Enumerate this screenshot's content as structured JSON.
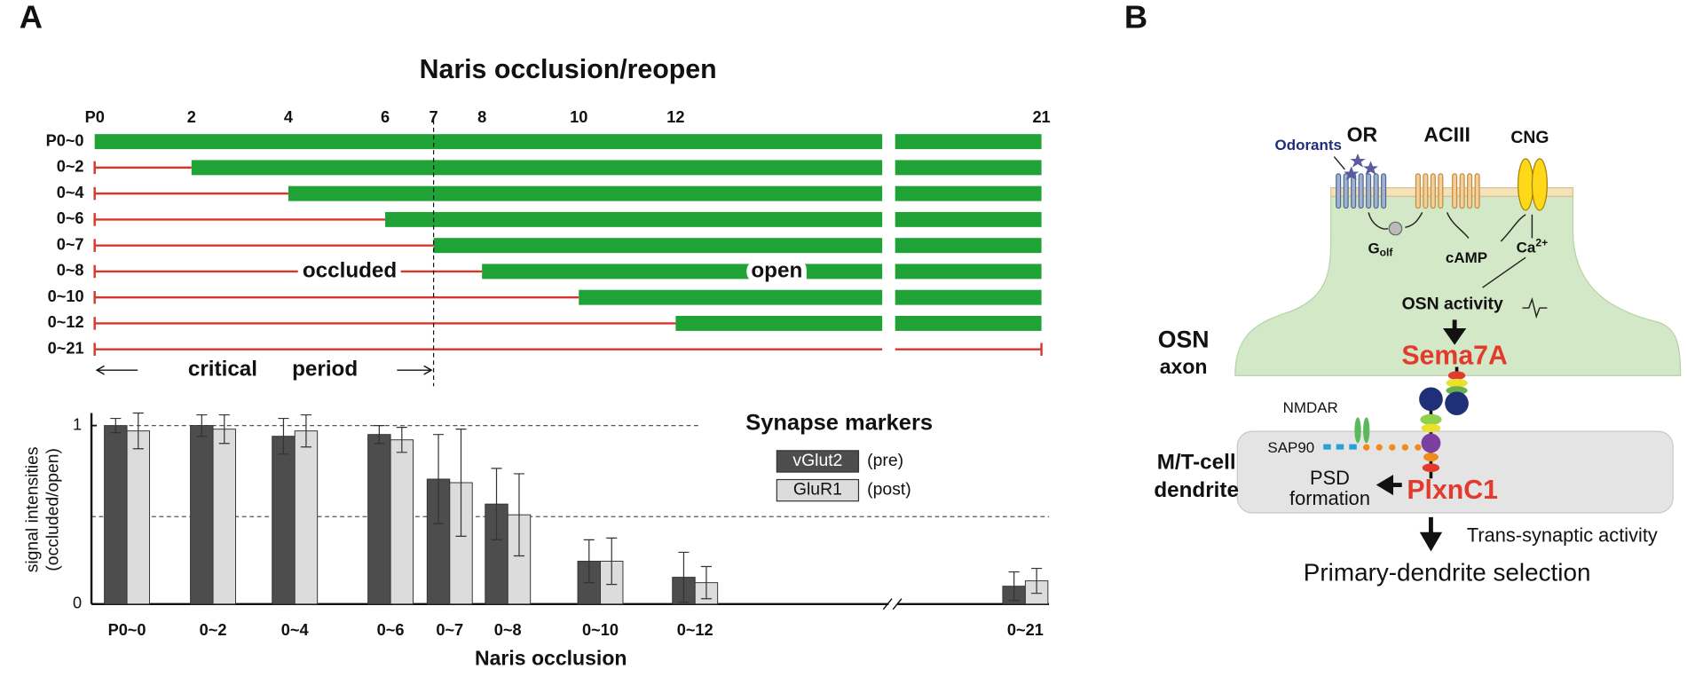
{
  "panel_a": {
    "label": "A"
  },
  "timeline": {
    "title": "Naris occlusion/reopen",
    "ticks": [
      {
        "value": 0,
        "label": "P0"
      },
      2,
      4,
      6,
      7,
      8,
      10,
      12,
      21
    ],
    "xlim": [
      0,
      21
    ],
    "rows": [
      {
        "label": "P0~0",
        "occluded_until": 0
      },
      {
        "label": "0~2",
        "occluded_until": 2
      },
      {
        "label": "0~4",
        "occluded_until": 4
      },
      {
        "label": "0~6",
        "occluded_until": 6
      },
      {
        "label": "0~7",
        "occluded_until": 7
      },
      {
        "label": "0~8",
        "occluded_until": 8
      },
      {
        "label": "0~10",
        "occluded_until": 10
      },
      {
        "label": "0~12",
        "occluded_until": 12
      },
      {
        "label": "0~21",
        "occluded_until": 21
      }
    ],
    "occluded_label": "occluded",
    "open_label": "open",
    "critical_period": {
      "end": 7,
      "labels": [
        "critical",
        "period"
      ]
    }
  },
  "chart_data": {
    "type": "bar",
    "categories": [
      "P0~0",
      "0~2",
      "0~4",
      "0~6",
      "0~7",
      "0~8",
      "0~10",
      "0~12",
      "0~21"
    ],
    "series": [
      {
        "name": "vGlut2",
        "note": "(pre)",
        "color": "#4d4d4d",
        "values": [
          1.0,
          1.0,
          0.94,
          0.95,
          0.7,
          0.56,
          0.24,
          0.15,
          0.1
        ],
        "errors": [
          0.04,
          0.06,
          0.1,
          0.05,
          0.25,
          0.2,
          0.12,
          0.14,
          0.08
        ]
      },
      {
        "name": "GluR1",
        "note": "(post)",
        "color": "#dcdcdc",
        "values": [
          0.97,
          0.98,
          0.97,
          0.92,
          0.68,
          0.5,
          0.24,
          0.12,
          0.13
        ],
        "errors": [
          0.1,
          0.08,
          0.09,
          0.07,
          0.3,
          0.23,
          0.13,
          0.09,
          0.07
        ]
      }
    ],
    "legend_title": "Synapse markers",
    "ylabel": [
      "signal intensities",
      "(occluded/open)"
    ],
    "xlabel": "Naris occlusion",
    "ylim": [
      0,
      1.07
    ],
    "yticks": [
      0,
      1
    ],
    "reference_lines": [
      1,
      0.49
    ]
  },
  "panel_b": {
    "label": "B",
    "odorants": "Odorants",
    "or": "OR",
    "aciii": "ACIII",
    "cng": "CNG",
    "golf": {
      "base": "G",
      "sub": "olf"
    },
    "camp": "cAMP",
    "calcium": {
      "base": "Ca",
      "sup": "2+"
    },
    "osn_activity": "OSN activity",
    "sema7a": "Sema7A",
    "osn_axon": [
      "OSN",
      "axon"
    ],
    "nmdar": "NMDAR",
    "sap90": "SAP90",
    "psd_formation": [
      "PSD",
      "formation"
    ],
    "plxnc1": "PlxnC1",
    "mt_dendrite": [
      "M/T-cell",
      "dendrite"
    ],
    "trans_synaptic": "Trans-synaptic activity",
    "outcome": "Primary-dendrite selection"
  }
}
